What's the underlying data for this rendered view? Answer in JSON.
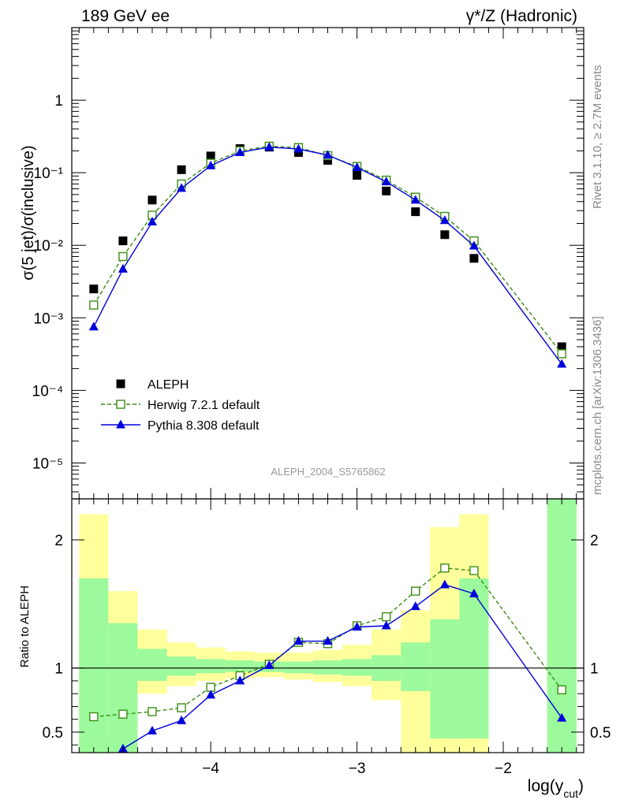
{
  "header": {
    "left_title": "189 GeV ee",
    "right_title": "γ*/Z (Hadronic)"
  },
  "side_labels": {
    "rivet": "Rivet 3.1.10, ≥ 2.7M events",
    "mcplots": "mcplots.cern.ch [arXiv:1306.3436]"
  },
  "watermark": "ALEPH_2004_S5765862",
  "chart_data": [
    {
      "type": "scatter",
      "panel": "main",
      "yscale": "log",
      "ylabel": "σ(5 jet)/σ(inclusive)",
      "xlim": [
        -4.95,
        -1.45
      ],
      "ylim": [
        3.2e-06,
        10
      ],
      "y_tick_labels": [
        "10⁻⁵",
        "10⁻⁴",
        "10⁻³",
        "10⁻²",
        "10⁻¹",
        "1"
      ],
      "legend": {
        "position": "lower-left"
      },
      "series": [
        {
          "name": "ALEPH",
          "color": "#000000",
          "marker": "filled-square",
          "x": [
            -4.8,
            -4.6,
            -4.4,
            -4.2,
            -4.0,
            -3.8,
            -3.6,
            -3.4,
            -3.2,
            -3.0,
            -2.8,
            -2.6,
            -2.4,
            -2.2,
            -1.6
          ],
          "y": [
            0.0025,
            0.0115,
            0.042,
            0.11,
            0.17,
            0.215,
            0.225,
            0.19,
            0.148,
            0.092,
            0.056,
            0.029,
            0.014,
            0.0066,
            0.0004
          ]
        },
        {
          "name": "Herwig 7.2.1 default",
          "color": "#3c8c14",
          "marker": "open-square",
          "line": "dashed",
          "x": [
            -4.8,
            -4.6,
            -4.4,
            -4.2,
            -4.0,
            -3.8,
            -3.6,
            -3.4,
            -3.2,
            -3.0,
            -2.8,
            -2.6,
            -2.4,
            -2.2,
            -1.6
          ],
          "y": [
            0.0015,
            0.007,
            0.026,
            0.07,
            0.135,
            0.2,
            0.232,
            0.222,
            0.172,
            0.122,
            0.079,
            0.046,
            0.025,
            0.0115,
            0.00032
          ]
        },
        {
          "name": "Pythia 8.308 default",
          "color": "#0000dd",
          "marker": "filled-triangle",
          "line": "solid",
          "x": [
            -4.8,
            -4.6,
            -4.4,
            -4.2,
            -4.0,
            -3.8,
            -3.6,
            -3.4,
            -3.2,
            -3.0,
            -2.8,
            -2.6,
            -2.4,
            -2.2,
            -1.6
          ],
          "y": [
            0.00075,
            0.0047,
            0.021,
            0.061,
            0.125,
            0.19,
            0.225,
            0.212,
            0.175,
            0.118,
            0.075,
            0.042,
            0.022,
            0.0098,
            0.00023
          ]
        }
      ]
    },
    {
      "type": "line",
      "panel": "ratio",
      "ylabel": "Ratio to ALEPH",
      "xlabel": "log(y_cut)",
      "xlim": [
        -4.95,
        -1.45
      ],
      "ylim": [
        0.34,
        2.32
      ],
      "x_tick_labels": [
        "−4",
        "−3",
        "−2"
      ],
      "y_tick_labels": [
        "0.5",
        "1",
        "2"
      ],
      "reference_line": 1,
      "bands": {
        "inner_color": "#9cfa9c",
        "outer_color": "#ffff9c",
        "edges": [
          [
            -4.9,
            -4.7
          ],
          [
            -4.7,
            -4.5
          ],
          [
            -4.5,
            -4.3
          ],
          [
            -4.3,
            -4.1
          ],
          [
            -4.1,
            -3.9
          ],
          [
            -3.9,
            -3.7
          ],
          [
            -3.7,
            -3.5
          ],
          [
            -3.5,
            -3.3
          ],
          [
            -3.3,
            -3.1
          ],
          [
            -3.1,
            -2.9
          ],
          [
            -2.9,
            -2.7
          ],
          [
            -2.7,
            -2.5
          ],
          [
            -2.5,
            -2.3
          ],
          [
            -2.3,
            -2.1
          ],
          [
            -1.7,
            -1.5
          ]
        ],
        "inner_low": [
          0.0,
          0.0,
          0.9,
          0.94,
          0.96,
          0.97,
          0.97,
          0.96,
          0.95,
          0.94,
          0.9,
          0.82,
          0.45,
          0.45,
          0.0
        ],
        "inner_high": [
          1.7,
          1.35,
          1.15,
          1.09,
          1.07,
          1.06,
          1.05,
          1.05,
          1.06,
          1.07,
          1.1,
          1.2,
          1.38,
          1.7,
          9.0
        ],
        "outer_low": [
          0.0,
          0.47,
          0.8,
          0.86,
          0.9,
          0.92,
          0.93,
          0.91,
          0.89,
          0.86,
          0.75,
          0.0,
          0.0,
          0.0,
          0.0
        ],
        "outer_high": [
          2.2,
          1.6,
          1.3,
          1.2,
          1.16,
          1.13,
          1.12,
          1.12,
          1.14,
          1.18,
          1.3,
          1.45,
          2.1,
          2.2,
          9.0
        ]
      },
      "series": [
        {
          "name": "Herwig 7.2.1 default",
          "color": "#3c8c14",
          "marker": "open-square",
          "line": "dashed",
          "x": [
            -4.8,
            -4.6,
            -4.4,
            -4.2,
            -4.0,
            -3.8,
            -3.6,
            -3.4,
            -3.2,
            -3.0,
            -2.8,
            -2.6,
            -2.4,
            -2.2,
            -1.6
          ],
          "y": [
            0.62,
            0.64,
            0.66,
            0.69,
            0.85,
            0.94,
            1.03,
            1.2,
            1.19,
            1.33,
            1.4,
            1.6,
            1.78,
            1.76,
            0.83
          ]
        },
        {
          "name": "Pythia 8.308 default",
          "color": "#0000dd",
          "marker": "filled-triangle",
          "line": "solid",
          "x": [
            -4.6,
            -4.4,
            -4.2,
            -4.0,
            -3.8,
            -3.6,
            -3.4,
            -3.2,
            -3.0,
            -2.8,
            -2.6,
            -2.4,
            -2.2,
            -1.6
          ],
          "y": [
            0.37,
            0.51,
            0.59,
            0.79,
            0.9,
            1.02,
            1.21,
            1.21,
            1.32,
            1.33,
            1.48,
            1.65,
            1.58,
            0.61
          ]
        }
      ]
    }
  ]
}
